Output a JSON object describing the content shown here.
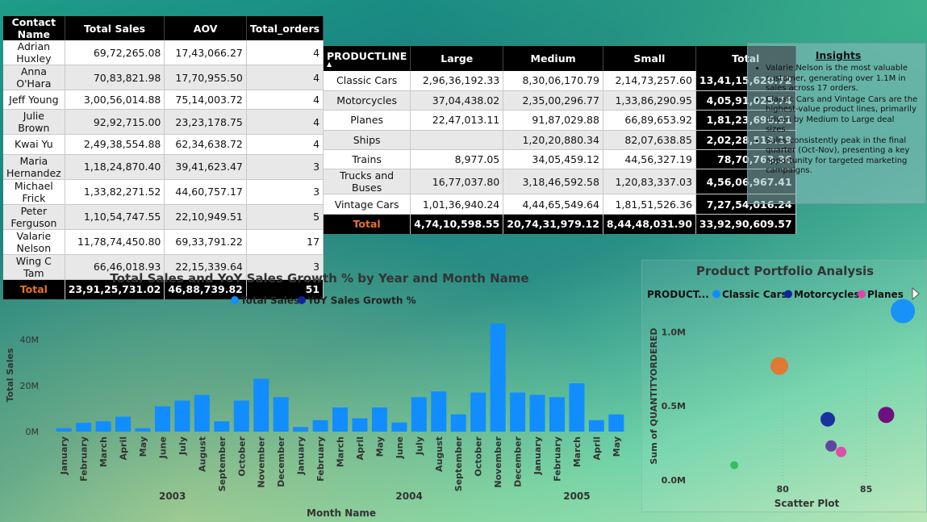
{
  "contacts_table": {
    "headers": [
      "Contact Name",
      "Total Sales",
      "AOV",
      "Total_orders"
    ],
    "rows": [
      [
        "Adrian Huxley",
        "69,72,265.08",
        "17,43,066.27",
        "4"
      ],
      [
        "Anna O'Hara",
        "70,83,821.98",
        "17,70,955.50",
        "4"
      ],
      [
        "Jeff Young",
        "3,00,56,014.88",
        "75,14,003.72",
        "4"
      ],
      [
        "Julie Brown",
        "92,92,715.00",
        "23,23,178.75",
        "4"
      ],
      [
        "Kwai Yu",
        "2,49,38,554.88",
        "62,34,638.72",
        "4"
      ],
      [
        "Maria Hernandez",
        "1,18,24,870.40",
        "39,41,623.47",
        "3"
      ],
      [
        "Michael Frick",
        "1,33,82,271.52",
        "44,60,757.17",
        "3"
      ],
      [
        "Peter Ferguson",
        "1,10,54,747.55",
        "22,10,949.51",
        "5"
      ],
      [
        "Valarie Nelson",
        "11,78,74,450.80",
        "69,33,791.22",
        "17"
      ],
      [
        "Wing C Tam",
        "66,46,018.93",
        "22,15,339.64",
        "3"
      ]
    ],
    "total": [
      "Total",
      "23,91,25,731.02",
      "46,88,739.82",
      "51"
    ]
  },
  "product_table": {
    "headers": [
      "PRODUCTLINE",
      "Large",
      "Medium",
      "Small",
      "Total"
    ],
    "sort_indicator": "▲",
    "rows": [
      [
        "Classic Cars",
        "2,96,36,192.33",
        "8,30,06,170.79",
        "2,14,73,257.60",
        "13,41,15,620.72"
      ],
      [
        "Motorcycles",
        "37,04,438.02",
        "2,35,00,296.77",
        "1,33,86,290.95",
        "4,05,91,025.74"
      ],
      [
        "Planes",
        "22,47,013.11",
        "91,87,029.88",
        "66,89,653.92",
        "1,81,23,696.91"
      ],
      [
        "Ships",
        "",
        "1,20,20,880.34",
        "82,07,638.85",
        "2,02,28,519.19"
      ],
      [
        "Trains",
        "8,977.05",
        "34,05,459.12",
        "44,56,327.19",
        "78,70,763.36"
      ],
      [
        "Trucks and Buses",
        "16,77,037.80",
        "3,18,46,592.58",
        "1,20,83,337.03",
        "4,56,06,967.41"
      ],
      [
        "Vintage Cars",
        "1,01,36,940.24",
        "4,44,65,549.64",
        "1,81,51,526.36",
        "7,27,54,016.24"
      ]
    ],
    "total": [
      "Total",
      "4,74,10,598.55",
      "20,74,31,979.12",
      "8,44,48,031.90",
      "33,92,90,609.57"
    ]
  },
  "insights": {
    "title": "Insights",
    "items": [
      "Valarie Nelson is the most valuable customer, generating over 1.1M in sales across 17 orders.",
      "Classic Cars and Vintage Cars are the highest-value product lines, primarily driven by Medium to Large deal sizes.",
      "Sales consistently peak in the final quarter (Oct-Nov), presenting a key opportunity for targeted marketing campaigns."
    ]
  },
  "chart_data": [
    {
      "type": "bar",
      "title": "Total Sales and YoY Sales Growth % by Year and Month Name",
      "legend": [
        "Total Sales",
        "YoY Sales Growth %"
      ],
      "legend_colors": [
        "#118dff",
        "#12239e"
      ],
      "xlabel": "Month Name",
      "ylabel": "Total Sales",
      "y_ticks": [
        "0M",
        "20M",
        "40M"
      ],
      "ylim": [
        0,
        50
      ],
      "years": [
        {
          "year": "2003",
          "months": [
            "January",
            "February",
            "March",
            "April",
            "May",
            "June",
            "July",
            "August",
            "September",
            "October",
            "November",
            "December"
          ],
          "values": [
            1.5,
            3.8,
            4.5,
            6.5,
            1.5,
            11,
            13.5,
            16,
            4.5,
            13.5,
            23,
            15
          ]
        },
        {
          "year": "2004",
          "months": [
            "January",
            "February",
            "March",
            "April",
            "May",
            "June",
            "July",
            "August",
            "September",
            "October",
            "November",
            "December"
          ],
          "values": [
            2,
            5,
            10.5,
            5.8,
            10.5,
            4,
            15,
            17.5,
            7.5,
            17,
            47,
            17
          ]
        },
        {
          "year": "2005",
          "months": [
            "January",
            "February",
            "March",
            "April",
            "May"
          ],
          "values": [
            16,
            15,
            21,
            5,
            7.5
          ]
        }
      ],
      "bar_color": "#118dff"
    },
    {
      "type": "scatter",
      "title": "Product Portfolio Analysis",
      "legend_title": "PRODUCT...",
      "legend": [
        {
          "name": "Classic Cars",
          "color": "#118dff"
        },
        {
          "name": "Motorcycles",
          "color": "#12239e"
        },
        {
          "name": "Planes",
          "color": "#e044a7"
        }
      ],
      "ylabel": "Sum of QUANTITYORDERED",
      "xlabel": "Scatter Plot",
      "x_ticks": [
        "80",
        "85"
      ],
      "y_ticks": [
        "0.0M",
        "0.5M",
        "1.0M"
      ],
      "xlim": [
        74,
        88.5
      ],
      "ylim": [
        0,
        1.1
      ],
      "points": [
        {
          "x": 87.2,
          "y": 1.14,
          "r": 15,
          "color": "#118dff"
        },
        {
          "x": 79.8,
          "y": 0.77,
          "r": 11,
          "color": "#e8722a"
        },
        {
          "x": 82.7,
          "y": 0.41,
          "r": 9,
          "color": "#12239e"
        },
        {
          "x": 86.2,
          "y": 0.44,
          "r": 10,
          "color": "#6b007b"
        },
        {
          "x": 82.9,
          "y": 0.23,
          "r": 7,
          "color": "#5a3a9a"
        },
        {
          "x": 83.5,
          "y": 0.19,
          "r": 6.5,
          "color": "#e044a7"
        },
        {
          "x": 77.1,
          "y": 0.1,
          "r": 5,
          "color": "#2ebd59"
        }
      ]
    }
  ]
}
